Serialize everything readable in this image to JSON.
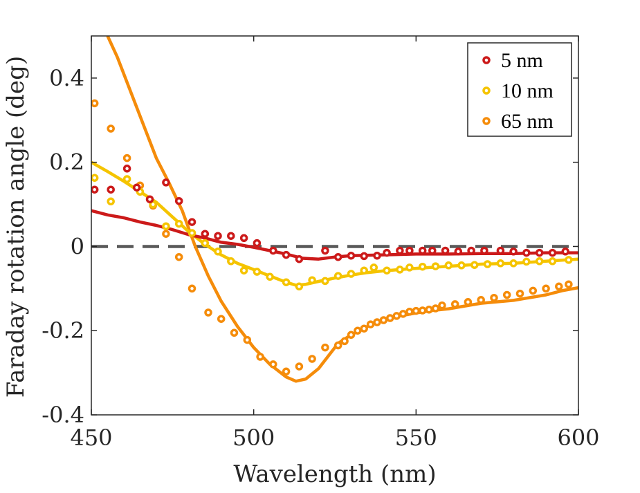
{
  "chart_data": {
    "type": "line",
    "xlabel": "Wavelength (nm)",
    "ylabel": "Faraday rotation angle (deg)",
    "xlim": [
      450,
      600
    ],
    "ylim": [
      -0.4,
      0.5
    ],
    "xticks": [
      450,
      500,
      550,
      600
    ],
    "xtick_labels": [
      "450",
      "500",
      "550",
      "600"
    ],
    "yticks": [
      -0.4,
      -0.2,
      0,
      0.2,
      0.4
    ],
    "ytick_labels": [
      "-0.4",
      "-0.2",
      "0",
      "0.2",
      "0.4"
    ],
    "zero_line": 0,
    "legend_position": "top-right",
    "series": [
      {
        "name": "5 nm",
        "color": "#cc1a1a",
        "line": [
          [
            450,
            0.085
          ],
          [
            455,
            0.075
          ],
          [
            460,
            0.068
          ],
          [
            465,
            0.058
          ],
          [
            470,
            0.05
          ],
          [
            475,
            0.04
          ],
          [
            480,
            0.028
          ],
          [
            485,
            0.02
          ],
          [
            490,
            0.01
          ],
          [
            495,
            0.005
          ],
          [
            500,
            -0.002
          ],
          [
            505,
            -0.01
          ],
          [
            510,
            -0.018
          ],
          [
            515,
            -0.028
          ],
          [
            520,
            -0.03
          ],
          [
            525,
            -0.025
          ],
          [
            530,
            -0.022
          ],
          [
            540,
            -0.02
          ],
          [
            550,
            -0.018
          ],
          [
            560,
            -0.018
          ],
          [
            570,
            -0.017
          ],
          [
            580,
            -0.017
          ],
          [
            590,
            -0.015
          ],
          [
            600,
            -0.015
          ]
        ],
        "points": [
          [
            451,
            0.135
          ],
          [
            456,
            0.135
          ],
          [
            461,
            0.185
          ],
          [
            464,
            0.14
          ],
          [
            468,
            0.112
          ],
          [
            473,
            0.152
          ],
          [
            477,
            0.108
          ],
          [
            481,
            0.058
          ],
          [
            485,
            0.03
          ],
          [
            489,
            0.025
          ],
          [
            493,
            0.025
          ],
          [
            497,
            0.02
          ],
          [
            501,
            0.008
          ],
          [
            506,
            -0.01
          ],
          [
            510,
            -0.02
          ],
          [
            514,
            -0.03
          ],
          [
            522,
            -0.01
          ],
          [
            526,
            -0.025
          ],
          [
            530,
            -0.022
          ],
          [
            534,
            -0.023
          ],
          [
            538,
            -0.022
          ],
          [
            541,
            -0.015
          ],
          [
            545,
            -0.01
          ],
          [
            548,
            -0.01
          ],
          [
            552,
            -0.01
          ],
          [
            555,
            -0.01
          ],
          [
            559,
            -0.01
          ],
          [
            563,
            -0.012
          ],
          [
            567,
            -0.01
          ],
          [
            571,
            -0.01
          ],
          [
            576,
            -0.01
          ],
          [
            580,
            -0.012
          ],
          [
            584,
            -0.015
          ],
          [
            588,
            -0.015
          ],
          [
            592,
            -0.015
          ],
          [
            596,
            -0.012
          ]
        ]
      },
      {
        "name": "10 nm",
        "color": "#f5c400",
        "line": [
          [
            450,
            0.2
          ],
          [
            455,
            0.178
          ],
          [
            460,
            0.155
          ],
          [
            465,
            0.13
          ],
          [
            470,
            0.105
          ],
          [
            475,
            0.07
          ],
          [
            480,
            0.035
          ],
          [
            485,
            0.005
          ],
          [
            490,
            -0.02
          ],
          [
            495,
            -0.04
          ],
          [
            500,
            -0.055
          ],
          [
            505,
            -0.07
          ],
          [
            510,
            -0.085
          ],
          [
            513,
            -0.092
          ],
          [
            516,
            -0.09
          ],
          [
            520,
            -0.083
          ],
          [
            525,
            -0.075
          ],
          [
            530,
            -0.068
          ],
          [
            535,
            -0.062
          ],
          [
            540,
            -0.058
          ],
          [
            545,
            -0.055
          ],
          [
            550,
            -0.052
          ],
          [
            560,
            -0.047
          ],
          [
            570,
            -0.042
          ],
          [
            580,
            -0.04
          ],
          [
            590,
            -0.035
          ],
          [
            600,
            -0.03
          ]
        ],
        "points": [
          [
            451,
            0.163
          ],
          [
            456,
            0.107
          ],
          [
            461,
            0.16
          ],
          [
            465,
            0.13
          ],
          [
            469,
            0.1
          ],
          [
            473,
            0.048
          ],
          [
            477,
            0.054
          ],
          [
            481,
            0.032
          ],
          [
            485,
            0.008
          ],
          [
            489,
            -0.012
          ],
          [
            493,
            -0.035
          ],
          [
            497,
            -0.057
          ],
          [
            501,
            -0.06
          ],
          [
            505,
            -0.072
          ],
          [
            510,
            -0.085
          ],
          [
            514,
            -0.095
          ],
          [
            518,
            -0.08
          ],
          [
            522,
            -0.082
          ],
          [
            526,
            -0.07
          ],
          [
            530,
            -0.065
          ],
          [
            534,
            -0.057
          ],
          [
            537,
            -0.05
          ],
          [
            541,
            -0.057
          ],
          [
            545,
            -0.055
          ],
          [
            548,
            -0.05
          ],
          [
            552,
            -0.048
          ],
          [
            556,
            -0.047
          ],
          [
            560,
            -0.045
          ],
          [
            564,
            -0.045
          ],
          [
            568,
            -0.044
          ],
          [
            572,
            -0.042
          ],
          [
            576,
            -0.04
          ],
          [
            580,
            -0.04
          ],
          [
            584,
            -0.036
          ],
          [
            588,
            -0.035
          ],
          [
            592,
            -0.035
          ],
          [
            597,
            -0.032
          ]
        ]
      },
      {
        "name": "65 nm",
        "color": "#f58c0a",
        "line": [
          [
            455,
            0.5
          ],
          [
            458,
            0.45
          ],
          [
            462,
            0.37
          ],
          [
            466,
            0.29
          ],
          [
            470,
            0.21
          ],
          [
            474,
            0.15
          ],
          [
            478,
            0.085
          ],
          [
            482,
            0.0
          ],
          [
            486,
            -0.07
          ],
          [
            490,
            -0.13
          ],
          [
            495,
            -0.19
          ],
          [
            500,
            -0.24
          ],
          [
            505,
            -0.28
          ],
          [
            510,
            -0.31
          ],
          [
            513,
            -0.32
          ],
          [
            516,
            -0.315
          ],
          [
            520,
            -0.29
          ],
          [
            523,
            -0.26
          ],
          [
            526,
            -0.23
          ],
          [
            530,
            -0.21
          ],
          [
            535,
            -0.19
          ],
          [
            540,
            -0.175
          ],
          [
            545,
            -0.165
          ],
          [
            550,
            -0.158
          ],
          [
            555,
            -0.152
          ],
          [
            560,
            -0.148
          ],
          [
            570,
            -0.135
          ],
          [
            580,
            -0.128
          ],
          [
            590,
            -0.115
          ],
          [
            595,
            -0.105
          ],
          [
            600,
            -0.098
          ]
        ],
        "points": [
          [
            451,
            0.34
          ],
          [
            456,
            0.28
          ],
          [
            461,
            0.21
          ],
          [
            465,
            0.145
          ],
          [
            469,
            0.097
          ],
          [
            473,
            0.03
          ],
          [
            477,
            -0.025
          ],
          [
            481,
            -0.1
          ],
          [
            486,
            -0.157
          ],
          [
            490,
            -0.172
          ],
          [
            494,
            -0.205
          ],
          [
            498,
            -0.222
          ],
          [
            502,
            -0.262
          ],
          [
            506,
            -0.28
          ],
          [
            510,
            -0.297
          ],
          [
            514,
            -0.285
          ],
          [
            518,
            -0.267
          ],
          [
            522,
            -0.24
          ],
          [
            526,
            -0.235
          ],
          [
            528,
            -0.225
          ],
          [
            530,
            -0.21
          ],
          [
            532,
            -0.2
          ],
          [
            534,
            -0.195
          ],
          [
            536,
            -0.185
          ],
          [
            538,
            -0.18
          ],
          [
            540,
            -0.175
          ],
          [
            542,
            -0.17
          ],
          [
            544,
            -0.165
          ],
          [
            546,
            -0.16
          ],
          [
            548,
            -0.155
          ],
          [
            550,
            -0.153
          ],
          [
            552,
            -0.152
          ],
          [
            554,
            -0.15
          ],
          [
            556,
            -0.147
          ],
          [
            558,
            -0.14
          ],
          [
            562,
            -0.137
          ],
          [
            566,
            -0.132
          ],
          [
            570,
            -0.127
          ],
          [
            574,
            -0.122
          ],
          [
            578,
            -0.115
          ],
          [
            582,
            -0.112
          ],
          [
            586,
            -0.105
          ],
          [
            590,
            -0.1
          ],
          [
            594,
            -0.095
          ],
          [
            597,
            -0.09
          ]
        ]
      }
    ]
  }
}
